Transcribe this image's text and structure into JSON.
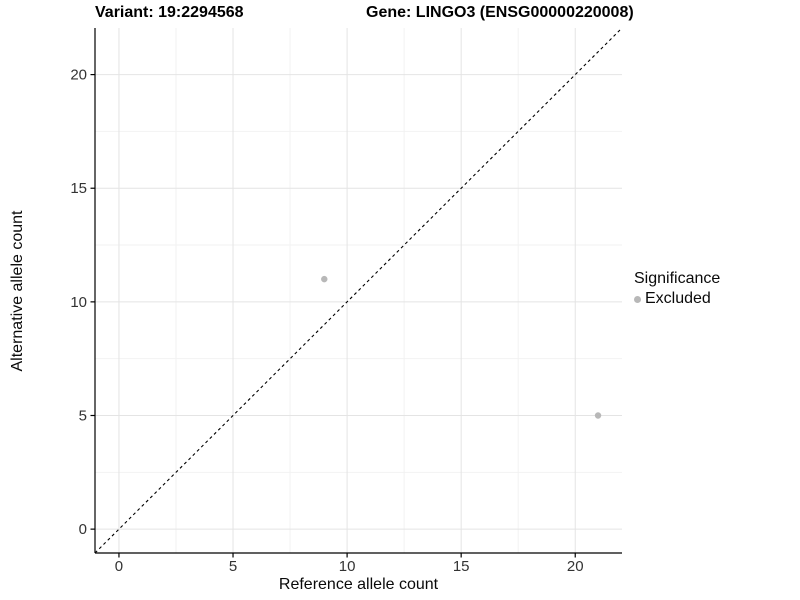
{
  "titles": {
    "variant": "Variant: 19:2294568",
    "gene": "Gene: LINGO3 (ENSG00000220008)"
  },
  "axis": {
    "x_label": "Reference allele count",
    "y_label": "Alternative allele count"
  },
  "legend": {
    "title": "Significance",
    "entries": [
      {
        "label": "Excluded",
        "color": "#b8b8b8"
      }
    ]
  },
  "chart_data": {
    "type": "scatter",
    "title": "Variant: 19:2294568 / Gene: LINGO3 (ENSG00000220008)",
    "xlabel": "Reference allele count",
    "ylabel": "Alternative allele count",
    "xlim": [
      -1.05,
      22.05
    ],
    "ylim": [
      -1.05,
      22.05
    ],
    "x_ticks": [
      0,
      5,
      10,
      15,
      20
    ],
    "y_ticks": [
      0,
      5,
      10,
      15,
      20
    ],
    "x_minor_gridlines": [
      2.5,
      7.5,
      12.5,
      17.5
    ],
    "y_minor_gridlines": [
      2.5,
      7.5,
      12.5,
      17.5
    ],
    "grid": "major+minor",
    "legend_position": "right",
    "series": [
      {
        "name": "Excluded",
        "color": "#b8b8b8",
        "marker": "circle",
        "points": [
          [
            9,
            11
          ],
          [
            21,
            5
          ]
        ]
      }
    ],
    "reference_line": {
      "type": "identity y=x",
      "style": "dashed",
      "color": "#000000"
    }
  },
  "colors": {
    "background": "#ffffff",
    "grid_major": "#e4e4e4",
    "grid_minor": "#f2f2f2",
    "axis_line": "#000000",
    "tick_label": "#333333",
    "point": "#b8b8b8"
  }
}
